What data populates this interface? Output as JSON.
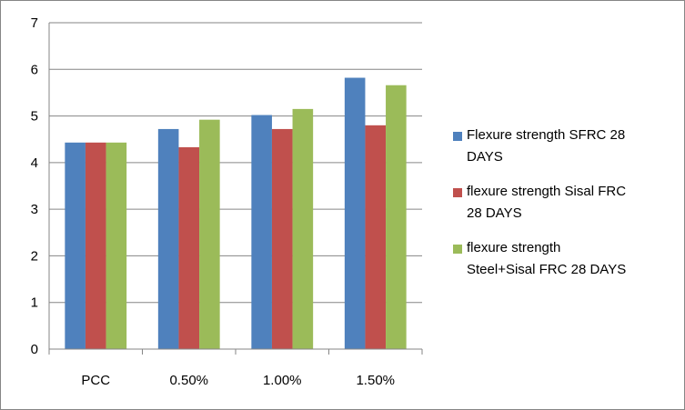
{
  "chart_data": {
    "type": "bar",
    "categories": [
      "PCC",
      "0.50%",
      "1.00%",
      "1.50%"
    ],
    "series": [
      {
        "name": "Flexure strength SFRC 28 DAYS",
        "color": "#4f81bd",
        "values": [
          4.43,
          4.72,
          5.02,
          5.82
        ]
      },
      {
        "name": "flexure strength Sisal FRC 28 DAYS",
        "color": "#c0504d",
        "values": [
          4.43,
          4.33,
          4.72,
          4.8
        ]
      },
      {
        "name": "flexure strength Steel+Sisal FRC 28 DAYS",
        "color": "#9bbb59",
        "values": [
          4.43,
          4.92,
          5.15,
          5.66
        ]
      }
    ],
    "yticks": [
      "0",
      "1",
      "2",
      "3",
      "4",
      "5",
      "6",
      "7"
    ],
    "ylim": [
      0,
      7
    ],
    "title": "",
    "xlabel": "",
    "ylabel": "",
    "grid": true,
    "legend_position": "right"
  },
  "legend_lines": [
    [
      "Flexure strength SFRC 28",
      "DAYS"
    ],
    [
      "flexure strength Sisal FRC",
      "28 DAYS"
    ],
    [
      "flexure strength",
      "Steel+Sisal FRC 28 DAYS"
    ]
  ]
}
